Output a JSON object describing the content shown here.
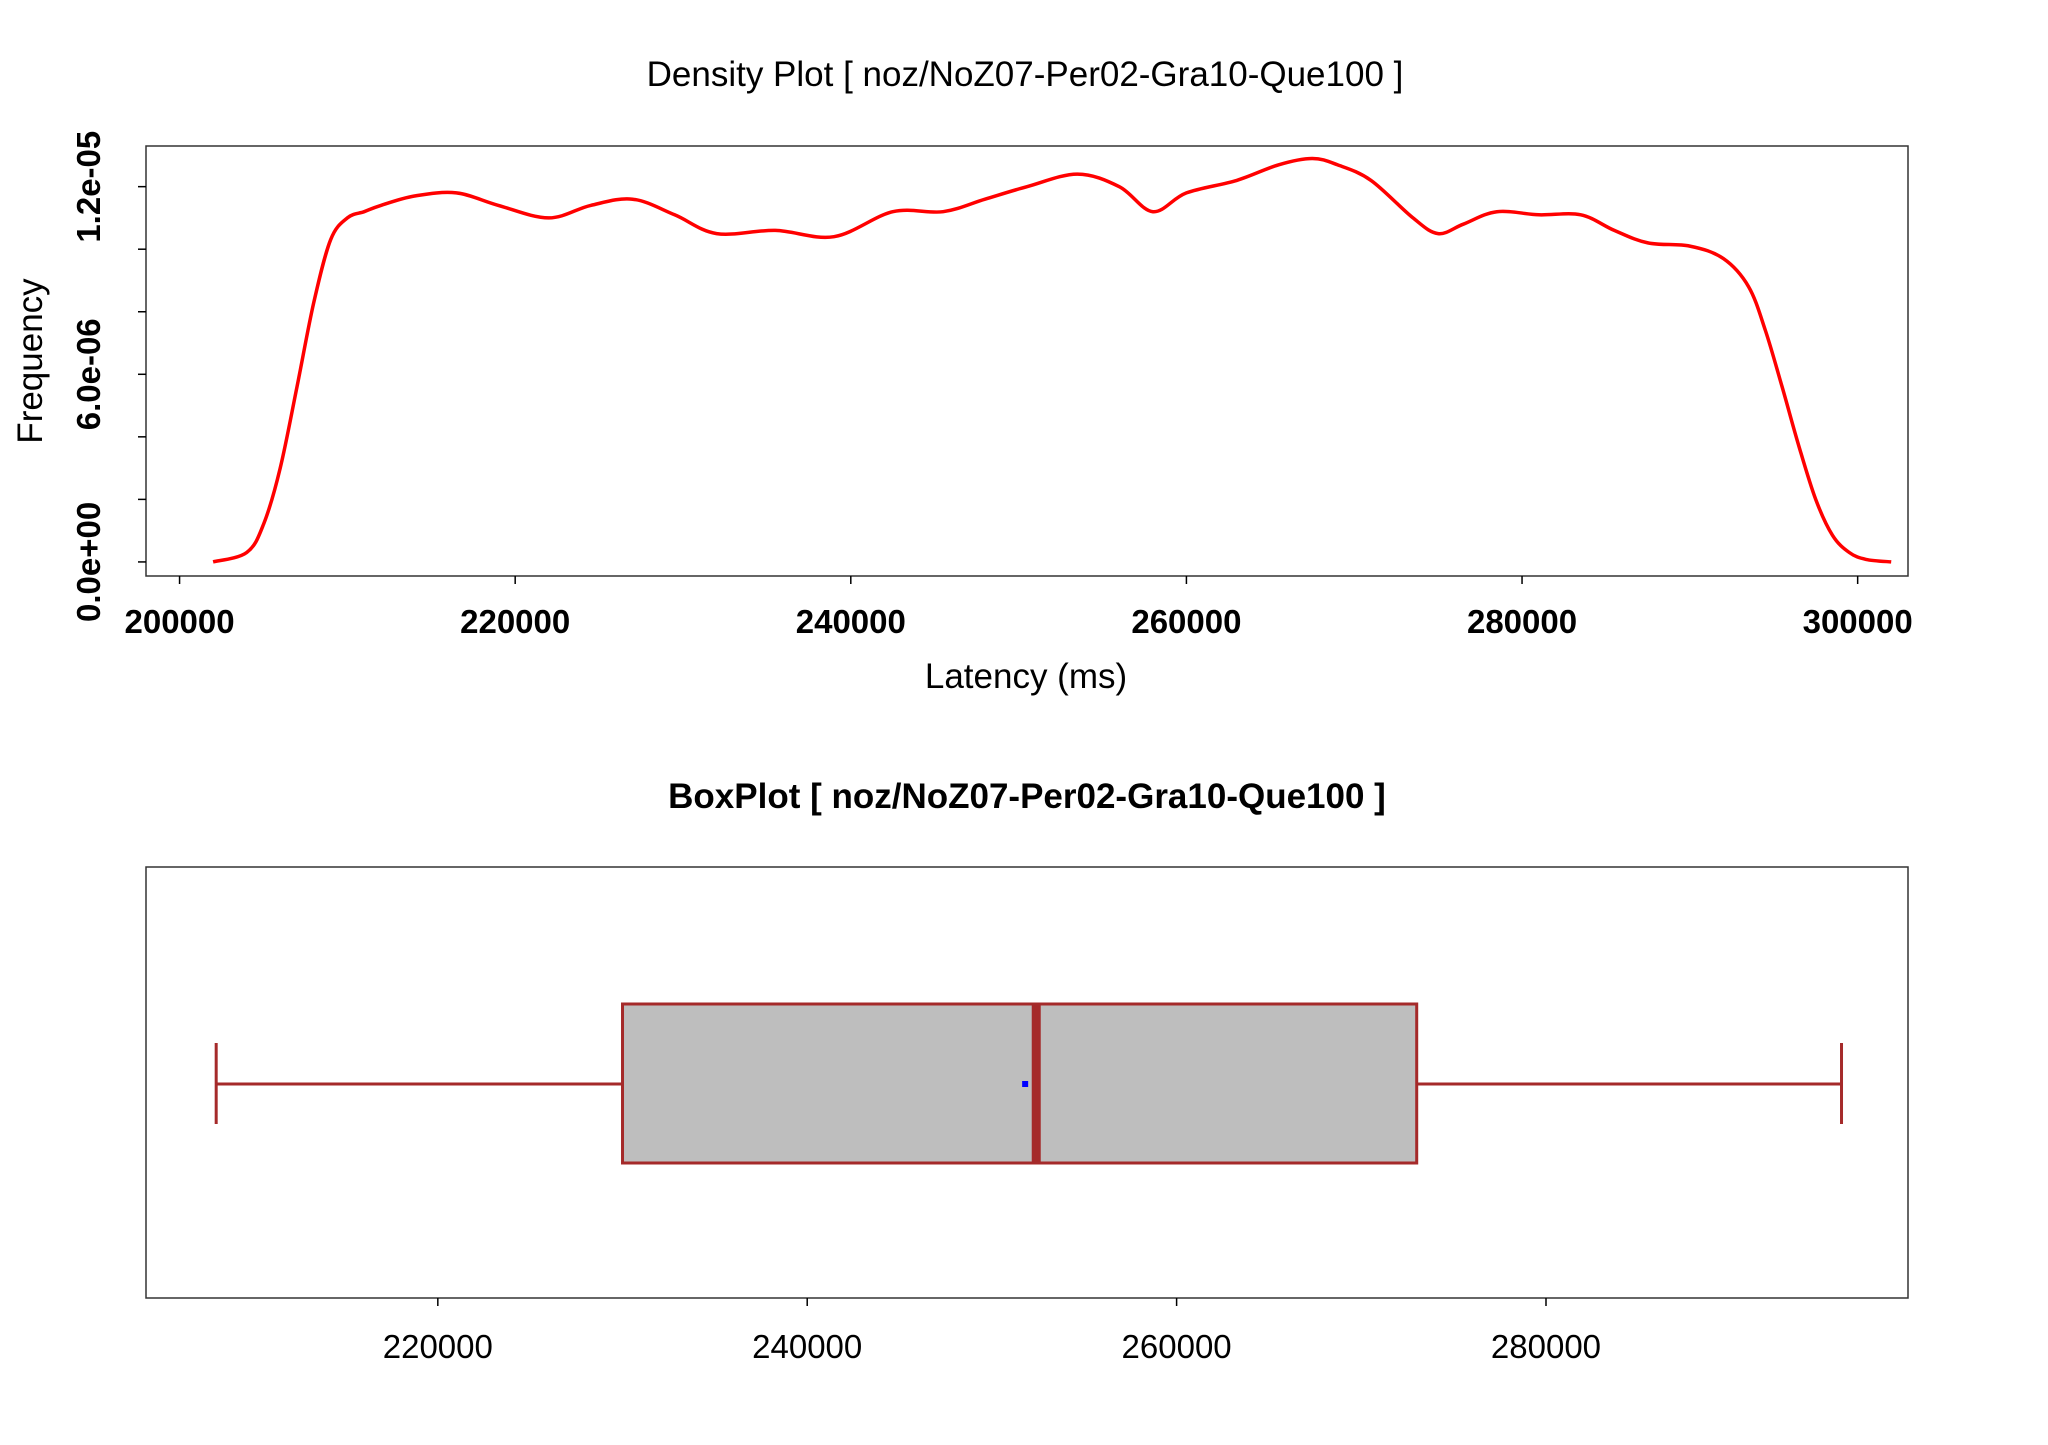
{
  "colors": {
    "density_line": "#ff0000",
    "box_fill": "#bebebe",
    "box_border": "#a52a2a",
    "median_line": "#a52a2a",
    "mean_marker": "#0000ff",
    "frame": "#333333"
  },
  "chart_data": [
    {
      "type": "line",
      "title": "Density Plot [ noz/NoZ07-Per02-Gra10-Que100 ]",
      "xlabel": "Latency (ms)",
      "ylabel": "Frequency",
      "xlim": [
        198000,
        303000
      ],
      "ylim": [
        -4.5e-07,
        1.33e-05
      ],
      "x_ticks": [
        200000,
        220000,
        240000,
        260000,
        280000,
        300000
      ],
      "x_tick_labels": [
        "200000",
        "220000",
        "240000",
        "260000",
        "280000",
        "300000"
      ],
      "y_ticks": [
        0,
        2e-06,
        4e-06,
        6e-06,
        8e-06,
        1e-05,
        1.2e-05
      ],
      "y_tick_labels": [
        "0.0e+00",
        "6.0e-06",
        "1.2e-05"
      ],
      "y_label_values": [
        0,
        6e-06,
        1.2e-05
      ],
      "grid": false,
      "series": [
        {
          "x": [
            202000,
            204000,
            205000,
            206000,
            207000,
            208000,
            209000,
            210000,
            211000,
            212000,
            214000,
            216500,
            219000,
            222000,
            224500,
            227000,
            229500,
            232000,
            235500,
            239000,
            242500,
            245500,
            248000,
            250500,
            253500,
            256000,
            258000,
            260000,
            263000,
            265500,
            267500,
            269000,
            271000,
            273500,
            275000,
            276500,
            278500,
            281000,
            283500,
            285500,
            287500,
            290000,
            292000,
            293500,
            294500,
            295500,
            296500,
            297500,
            298500,
            299500,
            300500,
            302000
          ],
          "y": [
            0.0,
            3e-07,
            1.2e-06,
            3e-06,
            5.6e-06,
            8.3e-06,
            1.03e-05,
            1.1e-05,
            1.12e-05,
            1.14e-05,
            1.17e-05,
            1.18e-05,
            1.14e-05,
            1.1e-05,
            1.14e-05,
            1.16e-05,
            1.11e-05,
            1.05e-05,
            1.06e-05,
            1.04e-05,
            1.12e-05,
            1.12e-05,
            1.16e-05,
            1.2e-05,
            1.24e-05,
            1.2e-05,
            1.12e-05,
            1.18e-05,
            1.22e-05,
            1.27e-05,
            1.29e-05,
            1.27e-05,
            1.22e-05,
            1.1e-05,
            1.05e-05,
            1.08e-05,
            1.12e-05,
            1.11e-05,
            1.11e-05,
            1.06e-05,
            1.02e-05,
            1.01e-05,
            9.7e-06,
            8.8e-06,
            7.4e-06,
            5.6e-06,
            3.7e-06,
            2e-06,
            8.5e-07,
            3e-07,
            8e-08,
            0.0
          ]
        }
      ]
    },
    {
      "type": "box",
      "title": "BoxPlot [ noz/NoZ07-Per02-Gra10-Que100 ]",
      "xlim": [
        204200,
        299600
      ],
      "x_ticks": [
        220000,
        240000,
        260000,
        280000
      ],
      "x_tick_labels": [
        "220000",
        "240000",
        "260000",
        "280000"
      ],
      "grid": false,
      "whisker_low": 208000,
      "q1": 230000,
      "median": 252400,
      "q3": 273000,
      "whisker_high": 296000,
      "mean": 251800
    }
  ]
}
